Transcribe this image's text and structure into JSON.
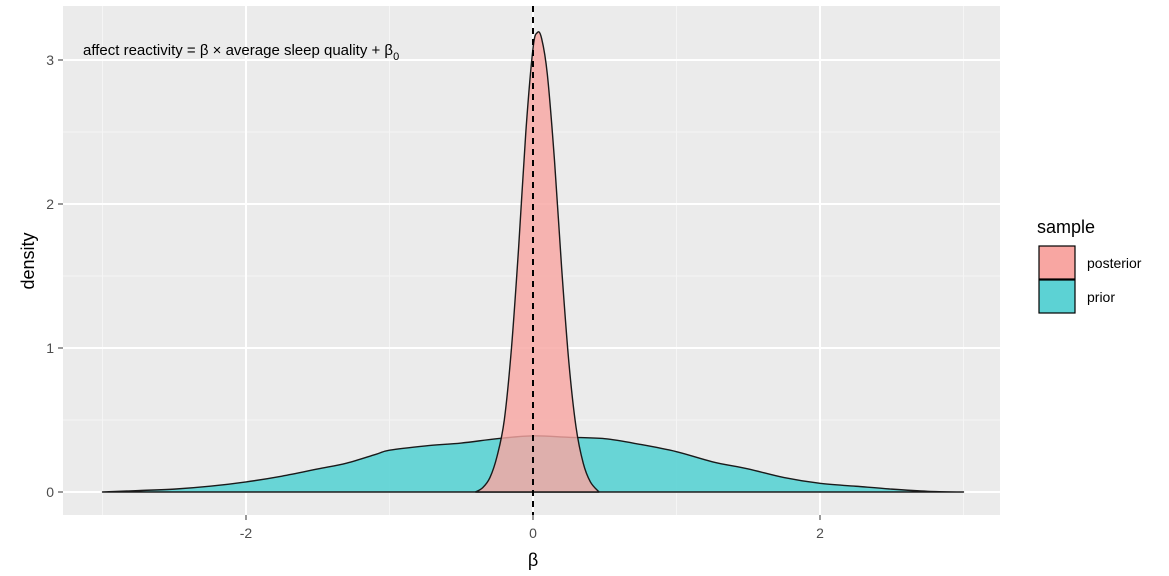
{
  "chart_data": {
    "type": "area",
    "annotation": {
      "prefix": "affect reactivity = β × average sleep quality + β",
      "subscript": "0"
    },
    "xlabel": "β",
    "ylabel": "density",
    "xlim": [
      -3.0,
      3.0
    ],
    "ylim": [
      0,
      3.2
    ],
    "x_ticks": [
      -2,
      0,
      2
    ],
    "x_tick_labels": [
      "-2",
      "0",
      "2"
    ],
    "y_ticks": [
      0,
      1,
      2,
      3
    ],
    "y_tick_labels": [
      "0",
      "1",
      "2",
      "3"
    ],
    "vline_x": 0,
    "vline_style": "dashed",
    "grid": true,
    "legend": {
      "title": "sample",
      "placement": "right",
      "entries": [
        {
          "label": "posterior",
          "color": "#F8A6A2"
        },
        {
          "label": "prior",
          "color": "#5CD2D4"
        }
      ]
    },
    "series": [
      {
        "name": "prior",
        "color": "#5CD2D4",
        "x": [
          -3.0,
          -2.75,
          -2.5,
          -2.25,
          -2.0,
          -1.75,
          -1.5,
          -1.3,
          -1.1,
          -1.0,
          -0.75,
          -0.5,
          -0.25,
          0.0,
          0.25,
          0.5,
          0.75,
          1.0,
          1.25,
          1.5,
          1.75,
          2.0,
          2.25,
          2.5,
          2.75,
          3.0
        ],
        "y": [
          0.0,
          0.01,
          0.02,
          0.04,
          0.07,
          0.11,
          0.16,
          0.2,
          0.26,
          0.29,
          0.32,
          0.34,
          0.37,
          0.39,
          0.38,
          0.37,
          0.33,
          0.28,
          0.21,
          0.16,
          0.1,
          0.06,
          0.04,
          0.02,
          0.005,
          0.0
        ]
      },
      {
        "name": "posterior",
        "color": "#F8A6A2",
        "x": [
          -0.4,
          -0.35,
          -0.3,
          -0.25,
          -0.2,
          -0.15,
          -0.1,
          -0.05,
          0.0,
          0.03,
          0.06,
          0.1,
          0.15,
          0.2,
          0.25,
          0.3,
          0.35,
          0.4,
          0.46
        ],
        "y": [
          0.0,
          0.03,
          0.1,
          0.25,
          0.5,
          1.0,
          1.7,
          2.5,
          3.08,
          3.19,
          3.15,
          2.9,
          2.3,
          1.55,
          0.9,
          0.45,
          0.2,
          0.07,
          0.0
        ]
      }
    ]
  }
}
